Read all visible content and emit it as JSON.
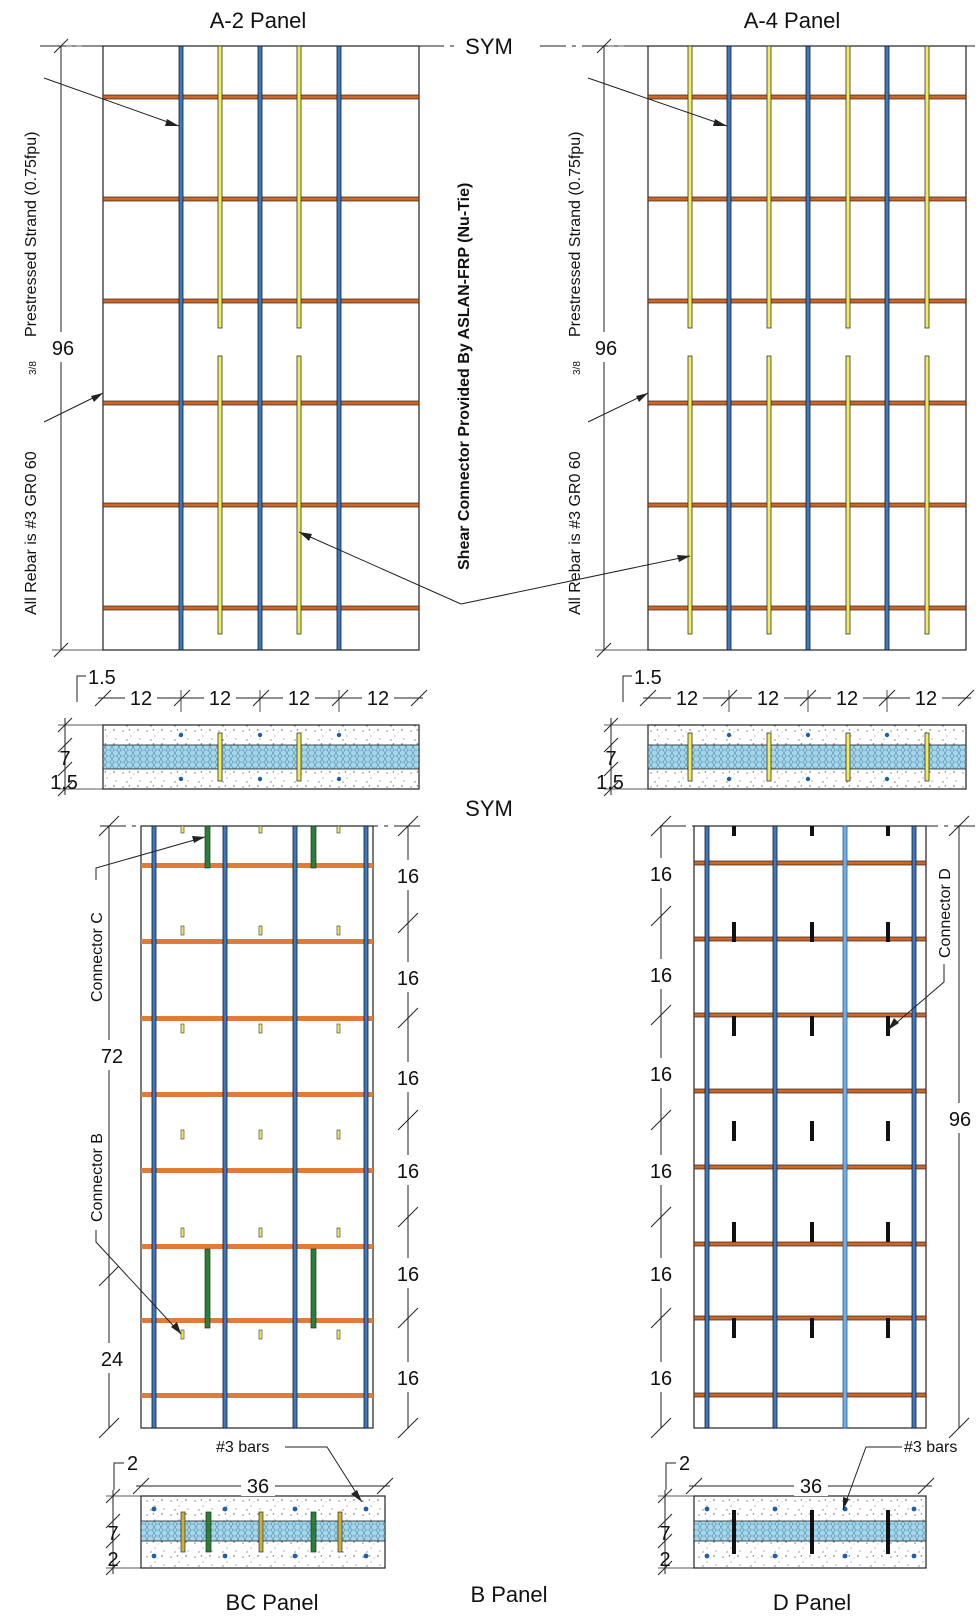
{
  "titles": {
    "a2": "A-2 Panel",
    "a4": "A-4 Panel",
    "bc": "BC Panel",
    "b": "B Panel",
    "d": "D Panel"
  },
  "sym": "SYM",
  "notes": {
    "strand": "Prestressed Strand (0.75fpu)",
    "strand_fraction": "3/8",
    "rebar": "All Rebar is #3 GR0 60",
    "shear_connector": "Shear Connector Provided By ASLAN-FRP (Nu-Tie)",
    "bars": "#3 bars",
    "connector_b": "Connector B",
    "connector_c": "Connector C",
    "connector_d": "Connector D"
  },
  "dims": {
    "height_96": "96",
    "spacing_12": "12",
    "edge_1_5": "1.5",
    "thickness_7": "7",
    "edge_2": "2",
    "width_36": "36",
    "spacing_16": "16",
    "len_72": "72",
    "len_24": "24"
  },
  "colors": {
    "strand": "#1f3f66",
    "strand_light": "#3f7fcf",
    "rebar": "#c9682c",
    "connector_yellow": "#f2ec5c",
    "connector_green": "#2e7d3a",
    "insulation": "#9fd0e6",
    "connector_black": "#111111"
  }
}
